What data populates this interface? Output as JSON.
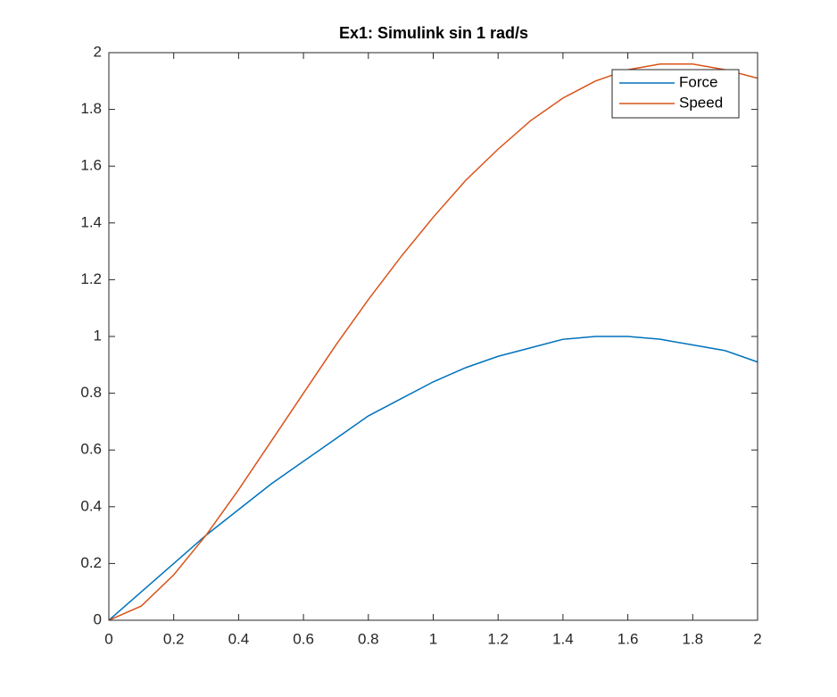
{
  "chart_data": {
    "type": "line",
    "title": "Ex1: Simulink sin 1 rad/s",
    "x": [
      0,
      0.1,
      0.2,
      0.3,
      0.4,
      0.5,
      0.6,
      0.7,
      0.8,
      0.9,
      1.0,
      1.1,
      1.2,
      1.3,
      1.4,
      1.5,
      1.6,
      1.7,
      1.8,
      1.9,
      2.0
    ],
    "series": [
      {
        "name": "Force",
        "color": "#0072bd",
        "values": [
          0,
          0.1,
          0.2,
          0.3,
          0.39,
          0.48,
          0.56,
          0.64,
          0.72,
          0.78,
          0.84,
          0.89,
          0.93,
          0.96,
          0.99,
          1.0,
          1.0,
          0.99,
          0.97,
          0.95,
          0.91
        ]
      },
      {
        "name": "Speed",
        "color": "#d95319",
        "values": [
          0,
          0.05,
          0.16,
          0.3,
          0.46,
          0.63,
          0.8,
          0.97,
          1.13,
          1.28,
          1.42,
          1.55,
          1.66,
          1.76,
          1.84,
          1.9,
          1.94,
          1.96,
          1.96,
          1.94,
          1.91
        ]
      }
    ],
    "xlim": [
      0,
      2
    ],
    "xticks": [
      0,
      0.2,
      0.4,
      0.6,
      0.8,
      1,
      1.2,
      1.4,
      1.6,
      1.8,
      2
    ],
    "ylim": [
      0,
      2
    ],
    "yticks": [
      0,
      0.2,
      0.4,
      0.6,
      0.8,
      1,
      1.2,
      1.4,
      1.6,
      1.8,
      2
    ],
    "legend": "upper right"
  }
}
